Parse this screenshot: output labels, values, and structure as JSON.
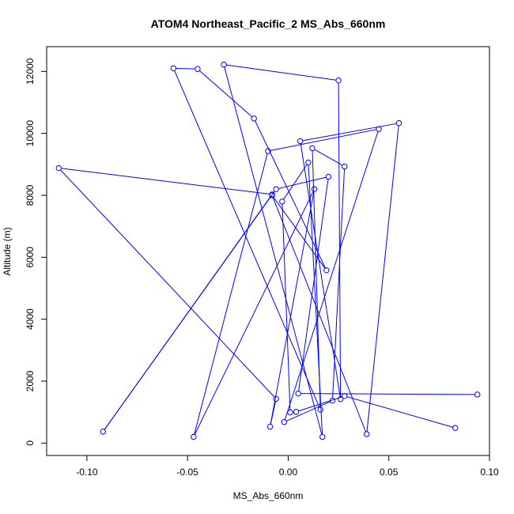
{
  "chart_data": {
    "type": "line",
    "title": "ATOM4 Northeast_Pacific_2 MS_Abs_660nm",
    "xlabel": "MS_Abs_660nm",
    "ylabel": "Altitude (m)",
    "xlim": [
      -0.12,
      0.1
    ],
    "ylim": [
      -400,
      12800
    ],
    "x_ticks": [
      -0.1,
      -0.05,
      0.0,
      0.05,
      0.1
    ],
    "x_tick_labels": [
      "-0.10",
      "-0.05",
      "0.00",
      "0.05",
      "0.10"
    ],
    "y_ticks": [
      0,
      2000,
      4000,
      6000,
      8000,
      10000,
      12000
    ],
    "y_tick_labels": [
      "0",
      "2000",
      "4000",
      "6000",
      "8000",
      "10000",
      "12000"
    ],
    "grid": false,
    "legend": "none",
    "series": [
      {
        "color": "#0000ff",
        "marker": "open-circle",
        "points": [
          {
            "x": 0.094,
            "y": 1570
          },
          {
            "x": 0.005,
            "y": 1600
          },
          {
            "x": 0.02,
            "y": 8600
          },
          {
            "x": -0.006,
            "y": 8200
          },
          {
            "x": -0.092,
            "y": 370
          },
          {
            "x": -0.008,
            "y": 8030
          },
          {
            "x": -0.114,
            "y": 8880
          },
          {
            "x": -0.006,
            "y": 1430
          },
          {
            "x": -0.009,
            "y": 530
          },
          {
            "x": 0.013,
            "y": 8200
          },
          {
            "x": -0.047,
            "y": 200
          },
          {
            "x": -0.01,
            "y": 9430
          },
          {
            "x": 0.045,
            "y": 10140
          },
          {
            "x": -0.002,
            "y": 680
          },
          {
            "x": 0.022,
            "y": 1370
          },
          {
            "x": 0.028,
            "y": 8930
          },
          {
            "x": 0.012,
            "y": 9520
          },
          {
            "x": 0.016,
            "y": 1080
          },
          {
            "x": -0.057,
            "y": 12100
          },
          {
            "x": -0.045,
            "y": 12080
          },
          {
            "x": -0.017,
            "y": 10480
          },
          {
            "x": 0.019,
            "y": 5580
          },
          {
            "x": -0.008,
            "y": 8000
          },
          {
            "x": 0.039,
            "y": 290
          },
          {
            "x": 0.055,
            "y": 10330
          },
          {
            "x": 0.006,
            "y": 9750
          },
          {
            "x": 0.026,
            "y": 1420
          },
          {
            "x": 0.025,
            "y": 11710
          },
          {
            "x": -0.032,
            "y": 12220
          },
          {
            "x": 0.017,
            "y": 200
          },
          {
            "x": 0.01,
            "y": 9060
          },
          {
            "x": -0.003,
            "y": 7800
          },
          {
            "x": 0.001,
            "y": 990
          },
          {
            "x": 0.004,
            "y": 1010
          },
          {
            "x": 0.028,
            "y": 1520
          },
          {
            "x": 0.083,
            "y": 490
          }
        ]
      }
    ]
  }
}
